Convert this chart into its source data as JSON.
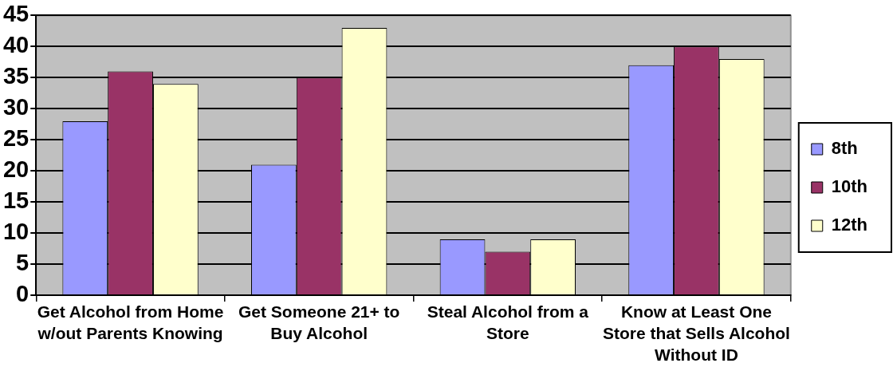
{
  "chart_data": {
    "type": "bar",
    "categories": [
      "Get Alcohol from Home w/out Parents Knowing",
      "Get Someone 21+ to Buy Alcohol",
      "Steal Alcohol from a Store",
      "Know at Least One Store that Sells Alcohol Without ID"
    ],
    "series": [
      {
        "name": "8th",
        "color": "#9999ff",
        "values": [
          28,
          21,
          9,
          37
        ]
      },
      {
        "name": "10th",
        "color": "#993366",
        "values": [
          36,
          35,
          7,
          40
        ]
      },
      {
        "name": "12th",
        "color": "#ffffcc",
        "values": [
          34,
          43,
          9,
          38
        ]
      }
    ],
    "ylim": [
      0,
      45
    ],
    "yticks": [
      0,
      5,
      10,
      15,
      20,
      25,
      30,
      35,
      40,
      45
    ],
    "grid": "y",
    "legend": "right"
  }
}
